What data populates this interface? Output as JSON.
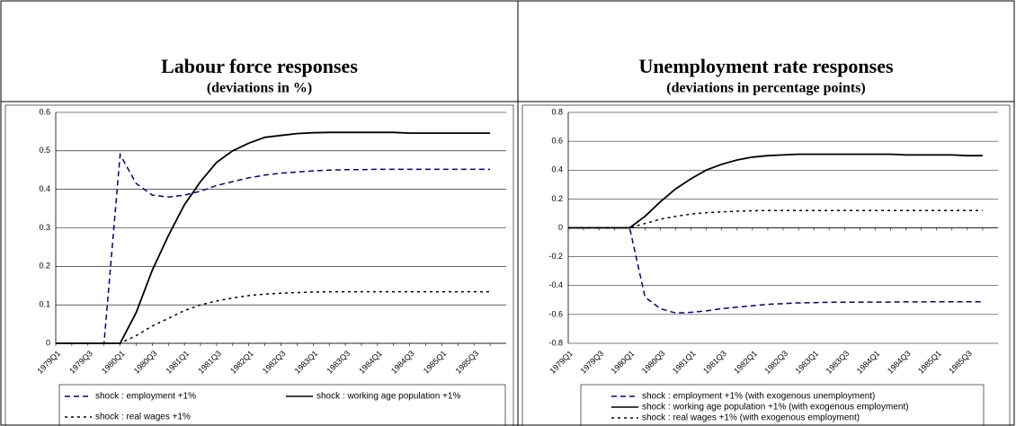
{
  "chart_data": [
    {
      "type": "line",
      "title": "Labour force responses",
      "subtitle": "(deviations in %)",
      "categories": [
        "1979Q1",
        null,
        "1979Q3",
        null,
        "1980Q1",
        null,
        "1980Q3",
        null,
        "1981Q1",
        null,
        "1981Q3",
        null,
        "1982Q1",
        null,
        "1982Q3",
        null,
        "1983Q1",
        null,
        "1983Q3",
        null,
        "1984Q1",
        null,
        "1984Q3",
        null,
        "1985Q1",
        null,
        "1985Q3",
        null
      ],
      "ylim": [
        0,
        0.6
      ],
      "yticks": [
        0,
        0.1,
        0.2,
        0.3,
        0.4,
        0.5,
        0.6
      ],
      "grid": true,
      "legend": "bottom",
      "series": [
        {
          "name": "shock : employment +1%",
          "color": "#000080",
          "dash": "dashed",
          "values": [
            0,
            0,
            0,
            0,
            0.49,
            0.415,
            0.385,
            0.38,
            0.385,
            0.395,
            0.41,
            0.42,
            0.43,
            0.437,
            0.442,
            0.445,
            0.448,
            0.45,
            0.451,
            0.451,
            0.452,
            0.452,
            0.452,
            0.452,
            0.452,
            0.452,
            0.452,
            0.452
          ]
        },
        {
          "name": "shock : working age population +1%",
          "color": "#000000",
          "dash": "solid",
          "values": [
            0,
            0,
            0,
            0,
            0,
            0.08,
            0.19,
            0.28,
            0.36,
            0.42,
            0.47,
            0.5,
            0.52,
            0.535,
            0.54,
            0.545,
            0.547,
            0.548,
            0.548,
            0.548,
            0.548,
            0.548,
            0.546,
            0.546,
            0.546,
            0.546,
            0.546,
            0.546
          ]
        },
        {
          "name": "shock : real wages +1%",
          "color": "#000000",
          "dash": "dotted",
          "values": [
            0,
            0,
            0,
            0,
            0,
            0.02,
            0.045,
            0.065,
            0.085,
            0.1,
            0.11,
            0.118,
            0.124,
            0.128,
            0.13,
            0.132,
            0.133,
            0.134,
            0.134,
            0.134,
            0.134,
            0.134,
            0.134,
            0.134,
            0.134,
            0.134,
            0.134,
            0.134
          ]
        }
      ]
    },
    {
      "type": "line",
      "title": "Unemployment rate responses",
      "subtitle": "(deviations in percentage points)",
      "categories": [
        "1979Q1",
        null,
        "1979Q3",
        null,
        "1980Q1",
        null,
        "1980Q3",
        null,
        "1981Q1",
        null,
        "1981Q3",
        null,
        "1982Q1",
        null,
        "1982Q3",
        null,
        "1983Q1",
        null,
        "1983Q3",
        null,
        "1984Q1",
        null,
        "1984Q3",
        null,
        "1985Q1",
        null,
        "1985Q3",
        null
      ],
      "ylim": [
        -0.8,
        0.8
      ],
      "yticks": [
        -0.8,
        -0.6,
        -0.4,
        -0.2,
        0,
        0.2,
        0.4,
        0.6,
        0.8
      ],
      "grid": true,
      "legend": "bottom",
      "series": [
        {
          "name": "shock : employment +1% (with exogenous unemployment)",
          "color": "#000080",
          "dash": "dashed",
          "values": [
            0,
            0,
            0,
            0,
            0,
            -0.48,
            -0.56,
            -0.59,
            -0.585,
            -0.575,
            -0.56,
            -0.55,
            -0.54,
            -0.53,
            -0.525,
            -0.52,
            -0.518,
            -0.516,
            -0.515,
            -0.515,
            -0.514,
            -0.514,
            -0.513,
            -0.513,
            -0.512,
            -0.512,
            -0.512,
            -0.512
          ]
        },
        {
          "name": "shock : working age population +1% (with exogenous employment)",
          "color": "#000000",
          "dash": "solid",
          "values": [
            0,
            0,
            0,
            0,
            0,
            0.08,
            0.18,
            0.27,
            0.34,
            0.4,
            0.44,
            0.47,
            0.49,
            0.5,
            0.505,
            0.51,
            0.51,
            0.51,
            0.51,
            0.51,
            0.51,
            0.51,
            0.505,
            0.505,
            0.505,
            0.505,
            0.5,
            0.5
          ]
        },
        {
          "name": "shock : real wages +1% (with exogenous employment)",
          "color": "#000000",
          "dash": "dotted",
          "values": [
            0,
            0,
            0,
            0,
            0,
            0.03,
            0.06,
            0.08,
            0.095,
            0.105,
            0.11,
            0.115,
            0.118,
            0.12,
            0.12,
            0.12,
            0.12,
            0.12,
            0.12,
            0.12,
            0.12,
            0.12,
            0.12,
            0.12,
            0.12,
            0.12,
            0.12,
            0.12
          ]
        }
      ]
    }
  ]
}
